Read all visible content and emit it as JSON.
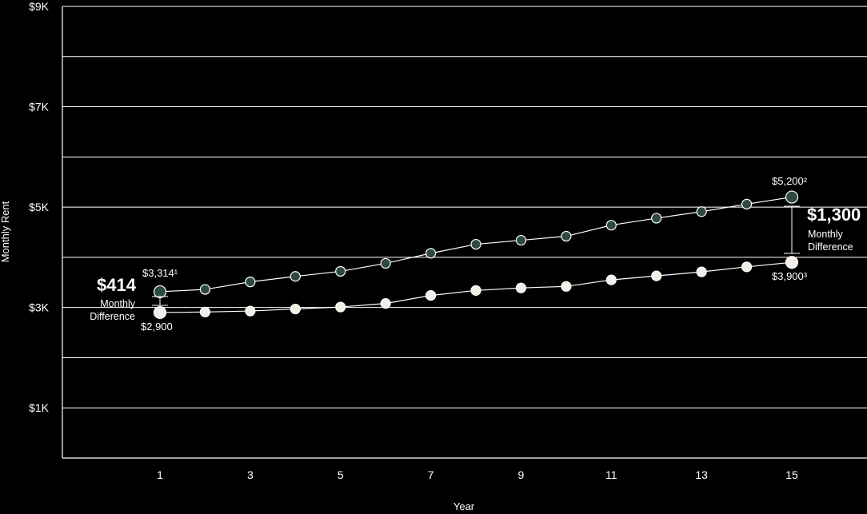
{
  "chart_data": {
    "type": "line",
    "xlabel": "Year",
    "ylabel": "Monthly Rent",
    "x": [
      1,
      2,
      3,
      4,
      5,
      6,
      7,
      8,
      9,
      10,
      11,
      12,
      13,
      14,
      15
    ],
    "x_ticks": [
      1,
      3,
      5,
      7,
      9,
      11,
      13,
      15
    ],
    "ylim": [
      0,
      9000
    ],
    "y_ticks": [
      1000,
      3000,
      5000,
      7000,
      9000
    ],
    "y_tick_labels": [
      "$1K",
      "$3K",
      "$5K",
      "$7K",
      "$9K"
    ],
    "grid": true,
    "series": [
      {
        "color": "#2e4a40",
        "values": [
          3314,
          3360,
          3510,
          3620,
          3720,
          3880,
          4080,
          4260,
          4340,
          4420,
          4640,
          4780,
          4910,
          5060,
          5200
        ]
      },
      {
        "color": "#f4efe6",
        "values": [
          2900,
          2910,
          2930,
          2970,
          3010,
          3080,
          3240,
          3340,
          3390,
          3420,
          3550,
          3630,
          3710,
          3810,
          3900
        ]
      }
    ],
    "point_labels": {
      "upper_start": "$3,314¹",
      "upper_end": "$5,200²",
      "lower_start": "$2,900",
      "lower_end": "$3,900³"
    },
    "annotations": [
      {
        "value": "$414",
        "label_line1": "Monthly",
        "label_line2": "Difference"
      },
      {
        "value": "$1,300",
        "label_line1": "Monthly",
        "label_line2": "Difference"
      }
    ]
  }
}
